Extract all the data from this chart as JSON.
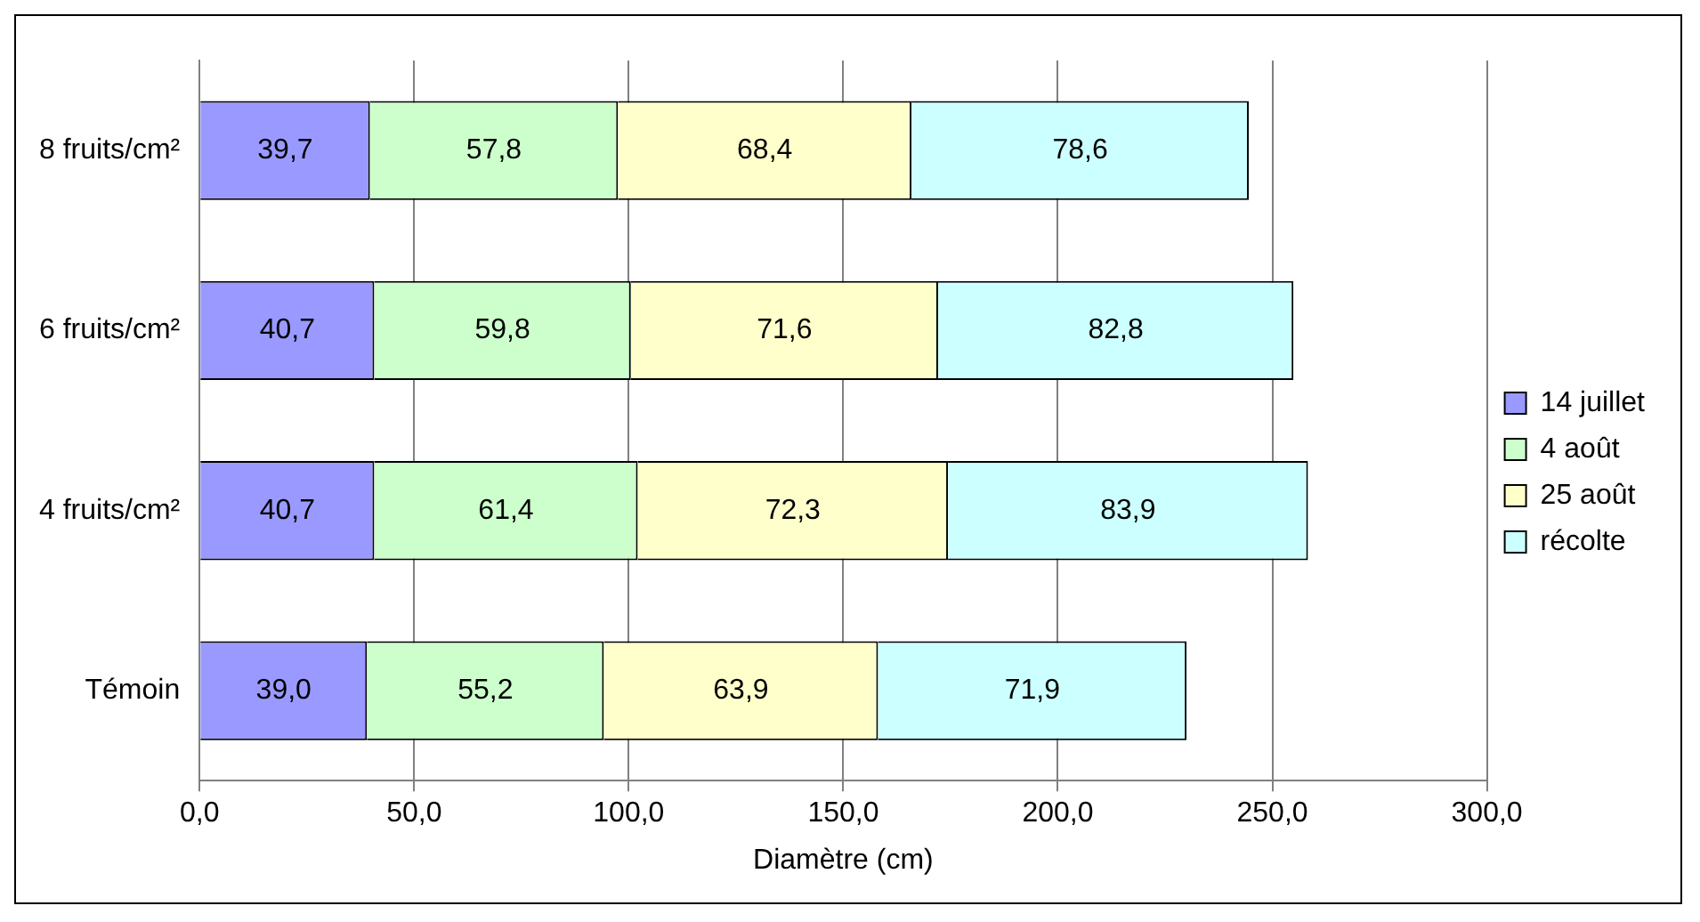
{
  "chart_data": {
    "type": "bar",
    "orientation": "horizontal",
    "stacked": true,
    "xlabel": "Diamètre (cm)",
    "categories": [
      "8 fruits/cm²",
      "6 fruits/cm²",
      "4 fruits/cm²",
      "Témoin"
    ],
    "series": [
      {
        "name": "14 juillet",
        "color": "#9999ff",
        "values": [
          39.7,
          40.7,
          40.7,
          39.0
        ],
        "value_labels": [
          "39,7",
          "40,7",
          "40,7",
          "39,0"
        ]
      },
      {
        "name": "4 août",
        "color": "#ccffcc",
        "values": [
          57.8,
          59.8,
          61.4,
          55.2
        ],
        "value_labels": [
          "57,8",
          "59,8",
          "61,4",
          "55,2"
        ]
      },
      {
        "name": "25 août",
        "color": "#ffffcc",
        "values": [
          68.4,
          71.6,
          72.3,
          63.9
        ],
        "value_labels": [
          "68,4",
          "71,6",
          "72,3",
          "63,9"
        ]
      },
      {
        "name": "récolte",
        "color": "#ccffff",
        "values": [
          78.6,
          82.8,
          83.9,
          71.9
        ],
        "value_labels": [
          "78,6",
          "82,8",
          "83,9",
          "71,9"
        ]
      }
    ],
    "xlim": [
      0,
      300
    ],
    "xticks": [
      {
        "value": 0,
        "label": "0,0"
      },
      {
        "value": 50,
        "label": "50,0"
      },
      {
        "value": 100,
        "label": "100,0"
      },
      {
        "value": 150,
        "label": "150,0"
      },
      {
        "value": 200,
        "label": "200,0"
      },
      {
        "value": 250,
        "label": "250,0"
      },
      {
        "value": 300,
        "label": "300,0"
      }
    ],
    "grid": "x",
    "legend": "right"
  }
}
